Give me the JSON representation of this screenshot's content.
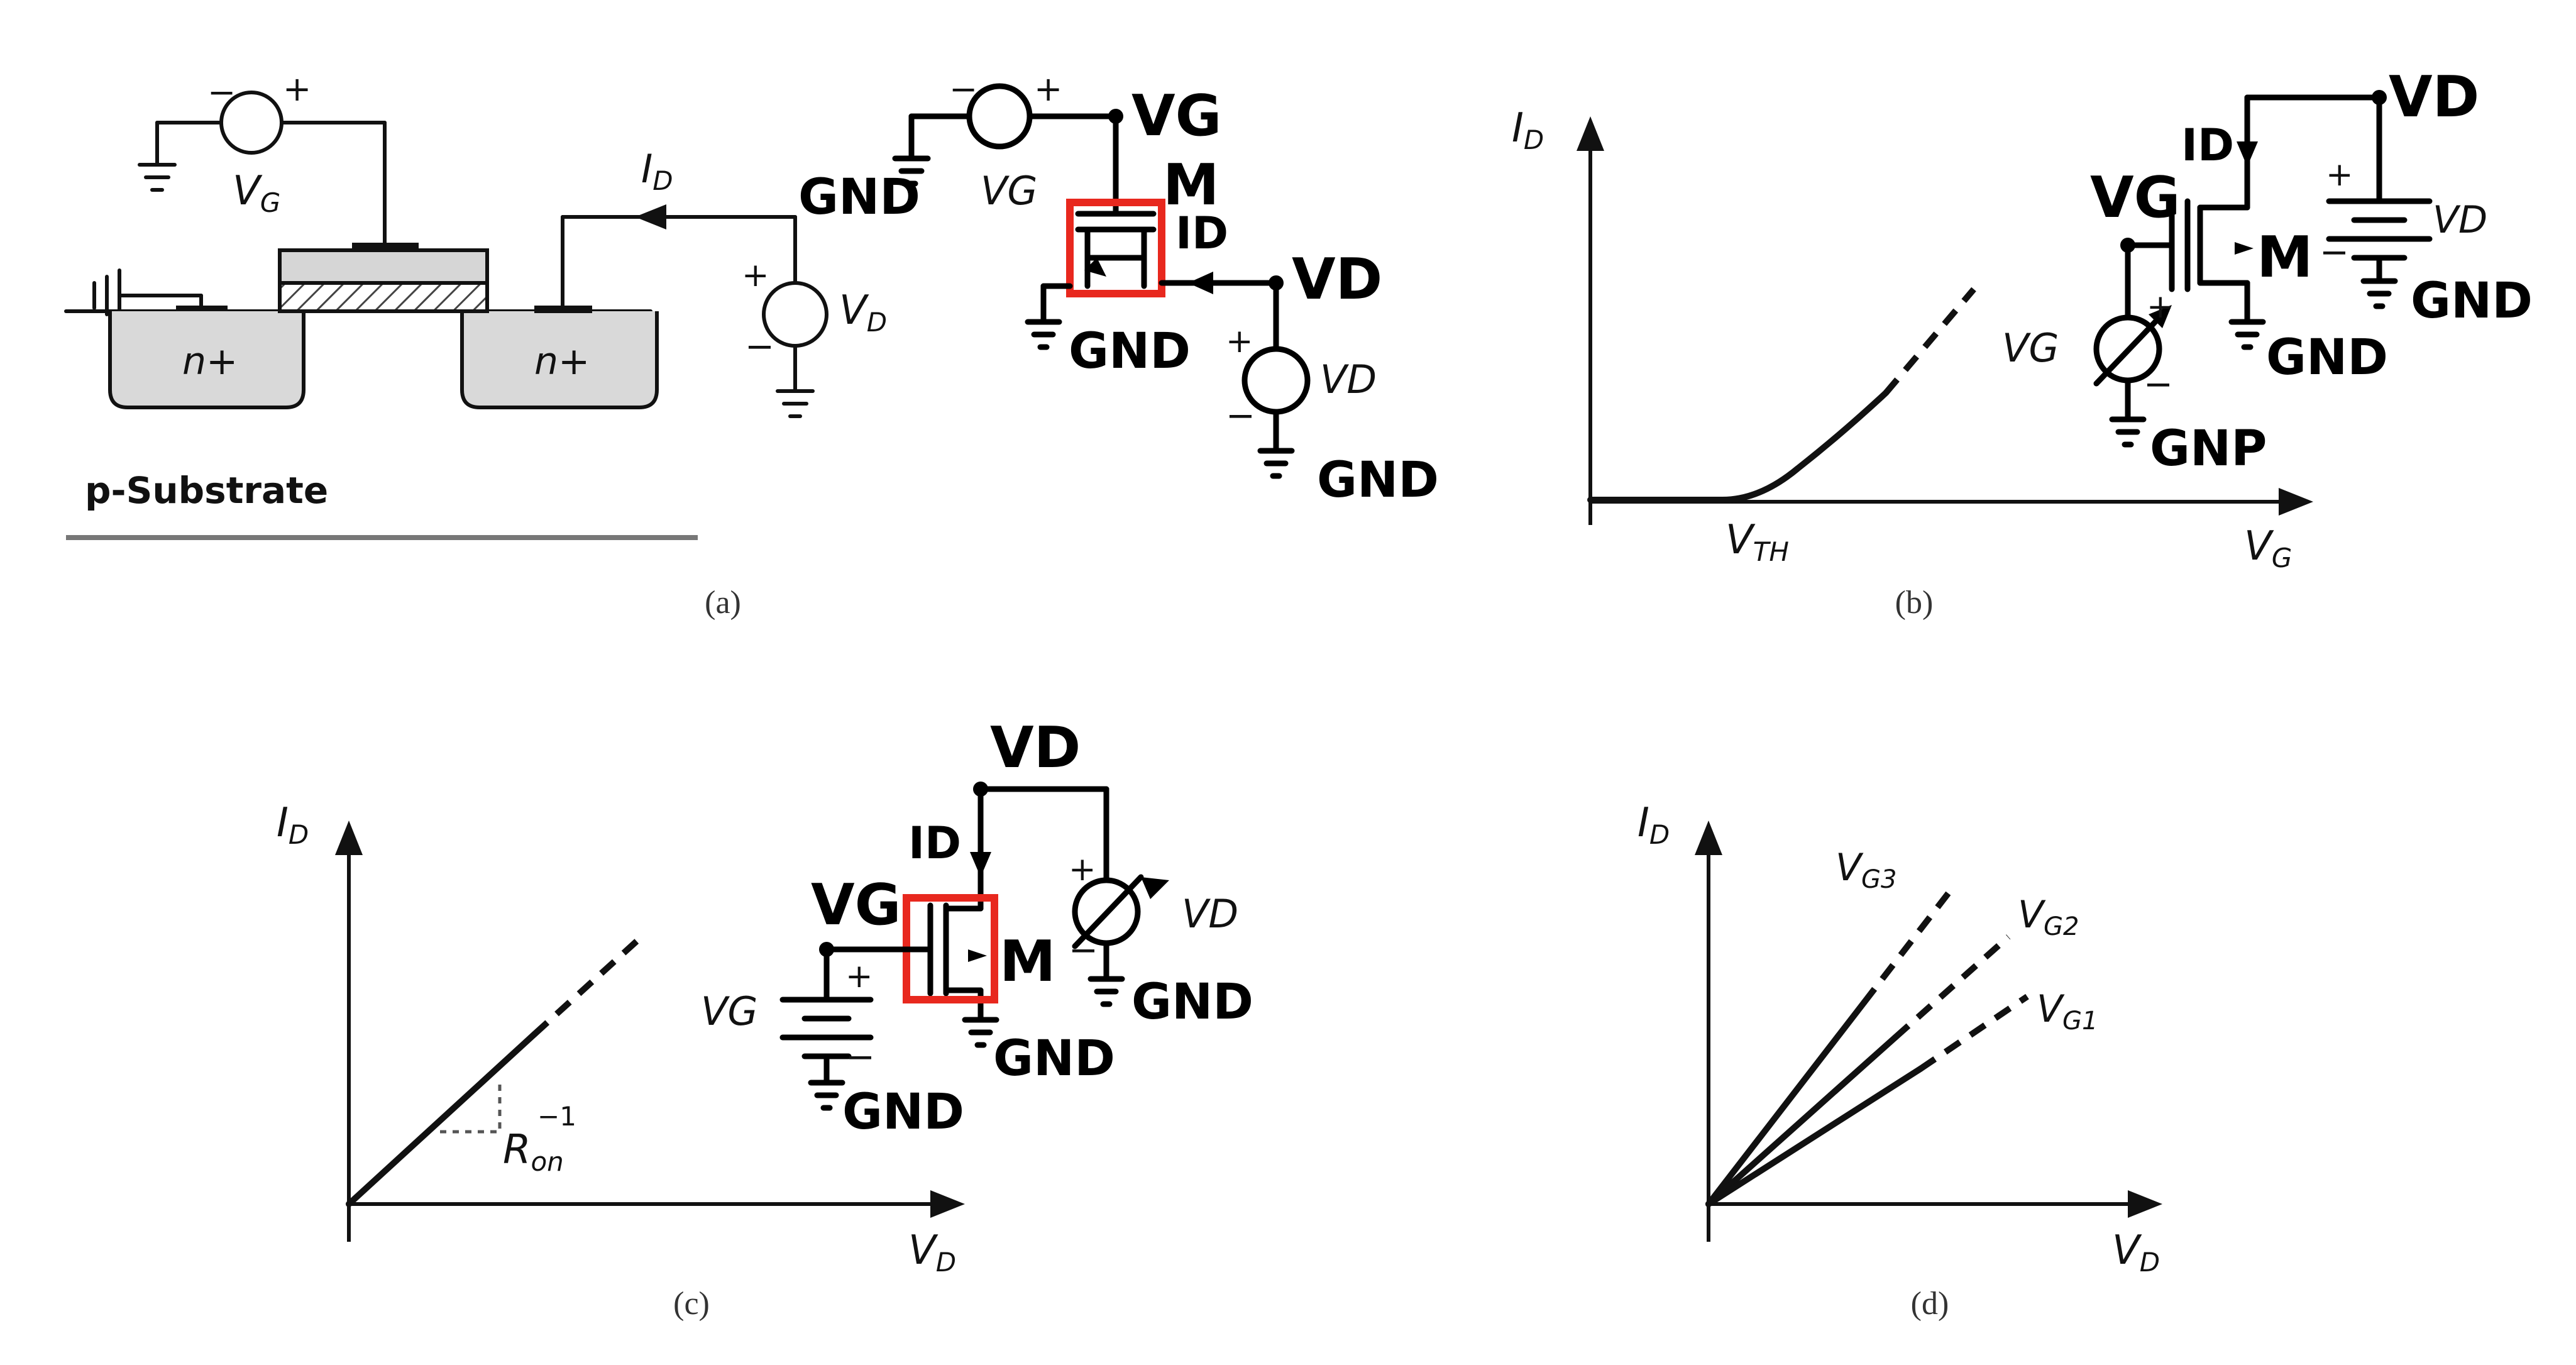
{
  "panels": {
    "a": {
      "caption": "(a)",
      "substrate_label": "p-Substrate",
      "diffusion_label": "n+",
      "gate_source_label": "V",
      "gate_source_sub": "G",
      "drain_current_label": "I",
      "drain_current_sub": "D",
      "drain_source_label": "V",
      "drain_source_sub": "D",
      "schematic": {
        "node_vg": "VG",
        "gnd_left": "GND",
        "source_vg": "VG",
        "transistor": "M",
        "current": "ID",
        "node_vd": "VD",
        "gnd_bottom": "GND",
        "source_vd": "VD",
        "gnd_right": "GND"
      }
    },
    "b": {
      "caption": "(b)",
      "y_axis": "I",
      "y_axis_sub": "D",
      "x_axis": "V",
      "x_axis_sub": "G",
      "threshold": "V",
      "threshold_sub": "TH",
      "schematic": {
        "node_vd": "VD",
        "current": "ID",
        "node_vg": "VG",
        "transistor": "M",
        "battery": "VD",
        "gnd_battery": "GND",
        "source_vg": "VG",
        "gnd_mid": "GND",
        "gnd_source": "GNP"
      }
    },
    "c": {
      "caption": "(c)",
      "y_axis": "I",
      "y_axis_sub": "D",
      "x_axis": "V",
      "x_axis_sub": "D",
      "slope_label": "R",
      "slope_sub": "on",
      "slope_sup": "−1",
      "schematic": {
        "node_vd": "VD",
        "current": "ID",
        "node_vg": "VG",
        "transistor": "M",
        "source_vd": "VD",
        "gnd_source_vd": "GND",
        "battery_vg": "VG",
        "gnd_transistor": "GND",
        "gnd_battery": "GND"
      }
    },
    "d": {
      "caption": "(d)",
      "y_axis": "I",
      "y_axis_sub": "D",
      "x_axis": "V",
      "x_axis_sub": "D",
      "curves": [
        {
          "label": "V",
          "sub": "G3"
        },
        {
          "label": "V",
          "sub": "G2"
        },
        {
          "label": "V",
          "sub": "G1"
        }
      ]
    }
  },
  "colors": {
    "highlight": "#e8281e",
    "ink": "#111111",
    "gate_fill": "#d6d6d6",
    "diffusion_fill": "#d9d9d9"
  },
  "chart_data": [
    {
      "type": "line",
      "panel": "b",
      "xlabel": "VG",
      "ylabel": "ID",
      "annotations": [
        "VTH"
      ],
      "series": [
        {
          "x": [
            0,
            0.3,
            0.4,
            0.55,
            0.75,
            1.0
          ],
          "y": [
            0,
            0,
            0,
            0.15,
            0.45,
            1.0
          ]
        }
      ]
    },
    {
      "type": "line",
      "panel": "c",
      "xlabel": "VD",
      "ylabel": "ID",
      "annotations": [
        "Ron−1"
      ],
      "series": [
        {
          "x": [
            0,
            0.6,
            1.0
          ],
          "y": [
            0,
            0.45,
            0.75
          ]
        }
      ]
    },
    {
      "type": "line",
      "panel": "d",
      "xlabel": "VD",
      "ylabel": "ID",
      "series": [
        {
          "name": "VG3",
          "x": [
            0,
            0.55,
            1.0
          ],
          "y": [
            0,
            0.6,
            1.0
          ]
        },
        {
          "name": "VG2",
          "x": [
            0,
            0.55,
            1.0
          ],
          "y": [
            0,
            0.45,
            0.8
          ]
        },
        {
          "name": "VG1",
          "x": [
            0,
            0.55,
            1.0
          ],
          "y": [
            0,
            0.35,
            0.6
          ]
        }
      ]
    }
  ]
}
